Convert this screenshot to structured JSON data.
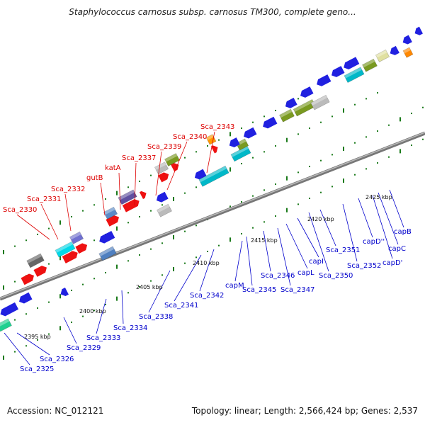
{
  "title": "Staphylococcus carnosus subsp. carnosus TM300, complete geno...",
  "footer": {
    "accession": "Accession: NC_012121",
    "stats": "Topology: linear; Length: 2,566,424 bp; Genes: 2,537"
  },
  "colors": {
    "up_label": "#dd0000",
    "down_label": "#0000cc",
    "backbone": "#888888",
    "tick": "#1a7a1a"
  },
  "scale_labels": [
    {
      "text": "2395 kbp"
    },
    {
      "text": "2400 kbp"
    },
    {
      "text": "2405 kbp"
    },
    {
      "text": "2410 kbp"
    },
    {
      "text": "2415 kbp"
    },
    {
      "text": "2420 kbp"
    },
    {
      "text": "2425 kbp"
    }
  ],
  "upper_genes": [
    {
      "label": "Sca_2330"
    },
    {
      "label": "Sca_2331"
    },
    {
      "label": "Sca_2332"
    },
    {
      "label": "gutB"
    },
    {
      "label": "katA"
    },
    {
      "label": "Sca_2337"
    },
    {
      "label": "Sca_2339"
    },
    {
      "label": "Sca_2340"
    },
    {
      "label": "Sca_2343"
    }
  ],
  "lower_genes": [
    {
      "label": "Sca_2325"
    },
    {
      "label": "Sca_2326"
    },
    {
      "label": "Sca_2329"
    },
    {
      "label": "Sca_2333"
    },
    {
      "label": "Sca_2334"
    },
    {
      "label": "Sca_2338"
    },
    {
      "label": "Sca_2341"
    },
    {
      "label": "Sca_2342"
    },
    {
      "label": "capM"
    },
    {
      "label": "Sca_2345"
    },
    {
      "label": "Sca_2346"
    },
    {
      "label": "Sca_2347"
    },
    {
      "label": "capL"
    },
    {
      "label": "capI"
    },
    {
      "label": "Sca_2350"
    },
    {
      "label": "Sca_2351"
    },
    {
      "label": "Sca_2352"
    },
    {
      "label": "capD''"
    },
    {
      "label": "capD'"
    },
    {
      "label": "capC"
    },
    {
      "label": "capB"
    }
  ]
}
